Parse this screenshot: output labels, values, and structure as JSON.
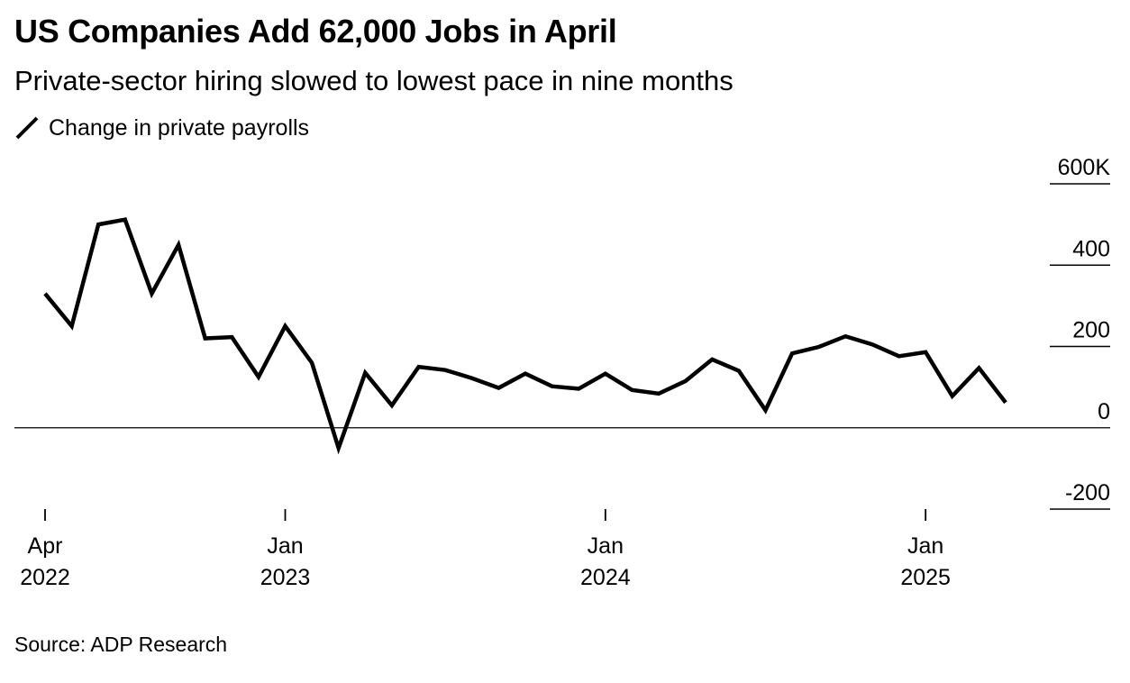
{
  "header": {
    "title": "US Companies Add 62,000 Jobs in April",
    "subtitle": "Private-sector hiring slowed to lowest pace in nine months"
  },
  "legend": {
    "label": "Change in private payrolls",
    "color": "#000000"
  },
  "footer": {
    "source": "Source: ADP Research"
  },
  "chart_data": {
    "type": "line",
    "title": "US Companies Add 62,000 Jobs in April",
    "subtitle": "Private-sector hiring slowed to lowest pace in nine months",
    "xlabel": "",
    "ylabel": "",
    "ylim": [
      -200,
      600
    ],
    "y_ticks": [
      -200,
      0,
      200,
      400,
      600
    ],
    "y_tick_labels": [
      "-200",
      "0",
      "200",
      "400",
      "600K"
    ],
    "x_ticks": [
      {
        "month": "2022-04",
        "line1": "Apr",
        "line2": "2022"
      },
      {
        "month": "2023-01",
        "line1": "Jan",
        "line2": "2023"
      },
      {
        "month": "2024-01",
        "line1": "Jan",
        "line2": "2024"
      },
      {
        "month": "2025-01",
        "line1": "Jan",
        "line2": "2025"
      }
    ],
    "grid": false,
    "legend_position": "top-left",
    "series": [
      {
        "name": "Change in private payrolls",
        "color": "#000000",
        "x": [
          "2022-04",
          "2022-05",
          "2022-06",
          "2022-07",
          "2022-08",
          "2022-09",
          "2022-10",
          "2022-11",
          "2022-12",
          "2023-01",
          "2023-02",
          "2023-03",
          "2023-04",
          "2023-05",
          "2023-06",
          "2023-07",
          "2023-08",
          "2023-09",
          "2023-10",
          "2023-11",
          "2023-12",
          "2024-01",
          "2024-02",
          "2024-03",
          "2024-04",
          "2024-05",
          "2024-06",
          "2024-07",
          "2024-08",
          "2024-09",
          "2024-10",
          "2024-11",
          "2024-12",
          "2025-01",
          "2025-02",
          "2025-03",
          "2025-04"
        ],
        "values": [
          330,
          250,
          500,
          512,
          330,
          450,
          220,
          223,
          125,
          250,
          160,
          -50,
          135,
          55,
          150,
          142,
          122,
          98,
          133,
          102,
          96,
          133,
          93,
          84,
          115,
          168,
          140,
          43,
          183,
          199,
          225,
          205,
          176,
          186,
          78,
          147,
          62
        ]
      }
    ]
  }
}
